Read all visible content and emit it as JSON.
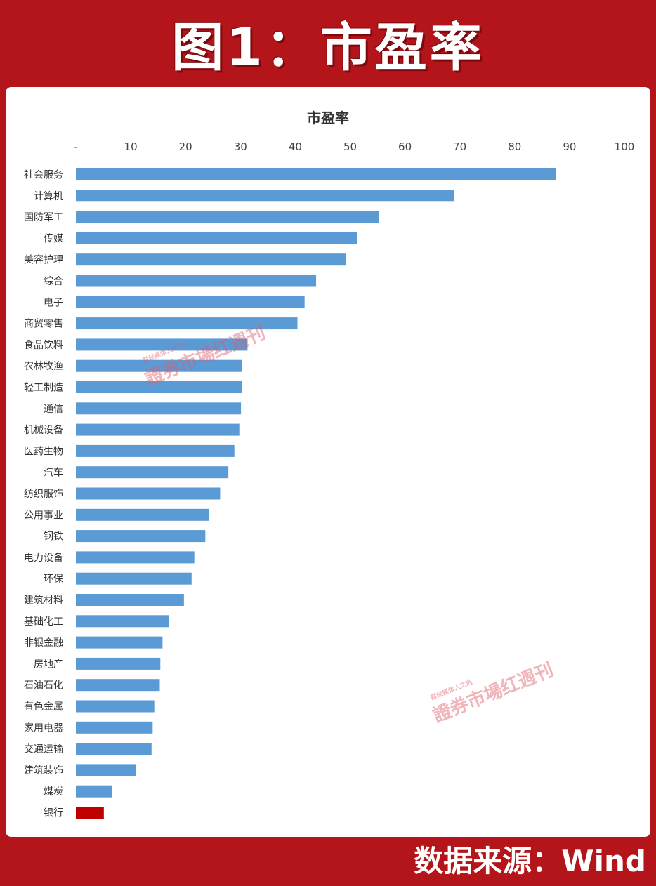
{
  "header": {
    "title": "图1：市盈率"
  },
  "footer": {
    "source": "数据来源：Wind"
  },
  "watermark": {
    "tagline": "财经媒体人之选",
    "text": "證券市場红週刊"
  },
  "colors": {
    "frame": "#b3151a",
    "bar": "#5b9bd5",
    "highlight_bar": "#c00000"
  },
  "chart_data": {
    "type": "bar",
    "orientation": "horizontal",
    "title": "市盈率",
    "xlim": [
      0,
      100
    ],
    "x_ticks": [
      "-",
      "10",
      "20",
      "30",
      "40",
      "50",
      "60",
      "70",
      "80",
      "90",
      "100"
    ],
    "grid": false,
    "categories": [
      "社会服务",
      "计算机",
      "国防军工",
      "传媒",
      "美容护理",
      "综合",
      "电子",
      "商贸零售",
      "食品饮料",
      "农林牧渔",
      "轻工制造",
      "通信",
      "机械设备",
      "医药生物",
      "汽车",
      "纺织服饰",
      "公用事业",
      "钢铁",
      "电力设备",
      "环保",
      "建筑材料",
      "基础化工",
      "非银金融",
      "房地产",
      "石油石化",
      "有色金属",
      "家用电器",
      "交通运输",
      "建筑装饰",
      "煤炭",
      "银行"
    ],
    "values": [
      87.5,
      69,
      55.3,
      51.3,
      49.2,
      43.8,
      41.7,
      40.4,
      31.3,
      30.3,
      30.3,
      30.1,
      29.8,
      28.9,
      27.8,
      26.3,
      24.3,
      23.6,
      21.6,
      21.1,
      19.7,
      16.9,
      15.8,
      15.4,
      15.3,
      14.3,
      14.0,
      13.8,
      11.0,
      6.6,
      5.1
    ],
    "highlight": [
      "银行"
    ]
  }
}
